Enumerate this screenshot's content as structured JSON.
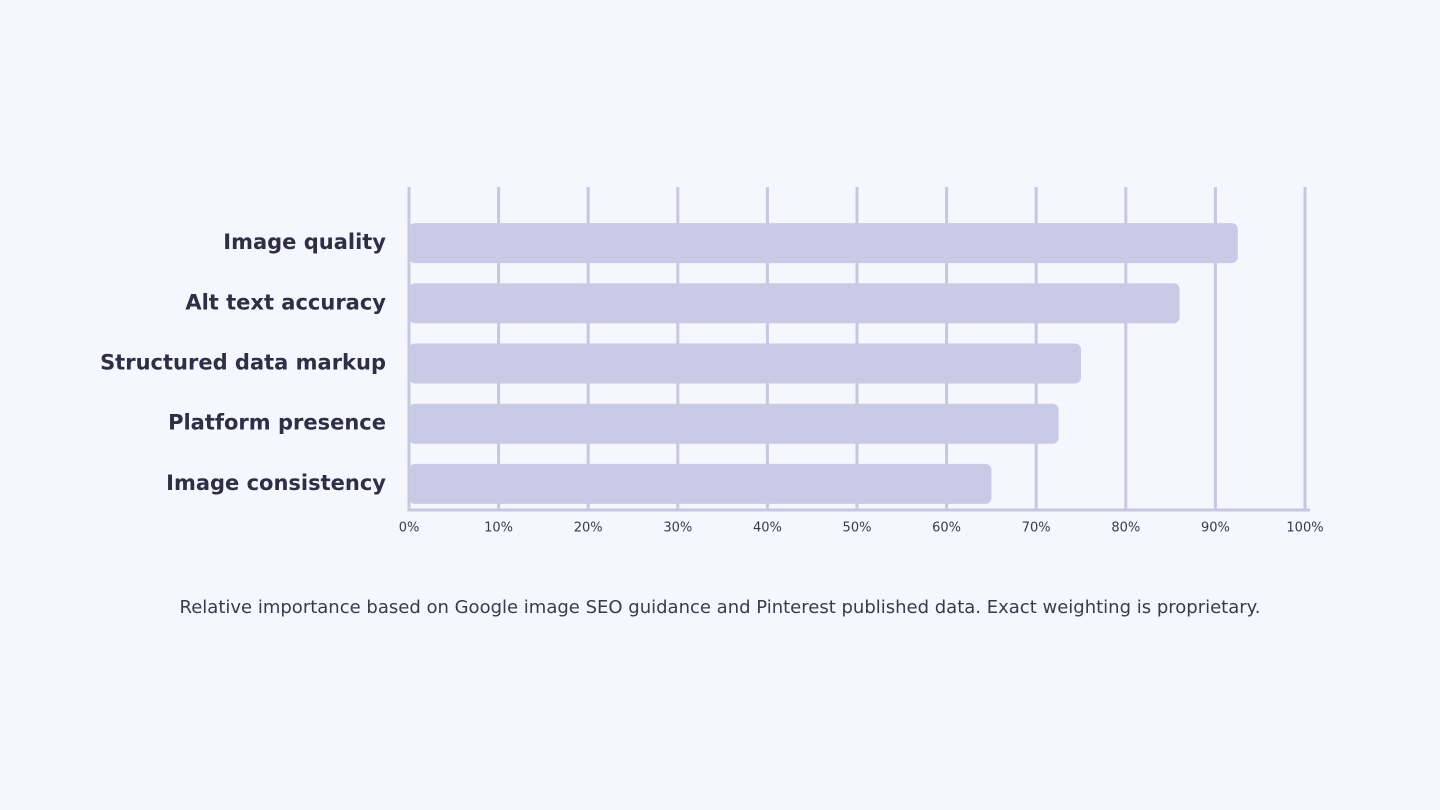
{
  "chart_data": {
    "type": "hbar",
    "categories": [
      "Image quality",
      "Alt text accuracy",
      "Structured data markup",
      "Platform presence",
      "Image consistency"
    ],
    "values": [
      92.5,
      86,
      75,
      72.5,
      65
    ],
    "color": "#c8cae6",
    "xlim": [
      0,
      100
    ],
    "xticks": [
      {
        "value": 0,
        "label": "0%"
      },
      {
        "value": 10,
        "label": "10%"
      },
      {
        "value": 20,
        "label": "20%"
      },
      {
        "value": 30,
        "label": "30%"
      },
      {
        "value": 40,
        "label": "40%"
      },
      {
        "value": 50,
        "label": "50%"
      },
      {
        "value": 60,
        "label": "60%"
      },
      {
        "value": 70,
        "label": "70%"
      },
      {
        "value": 80,
        "label": "80%"
      },
      {
        "value": 90,
        "label": "90%"
      },
      {
        "value": 100,
        "label": "100%"
      }
    ],
    "grid": true,
    "caption": "Relative importance based on Google image SEO guidance and Pinterest published data. Exact weighting is proprietary."
  }
}
